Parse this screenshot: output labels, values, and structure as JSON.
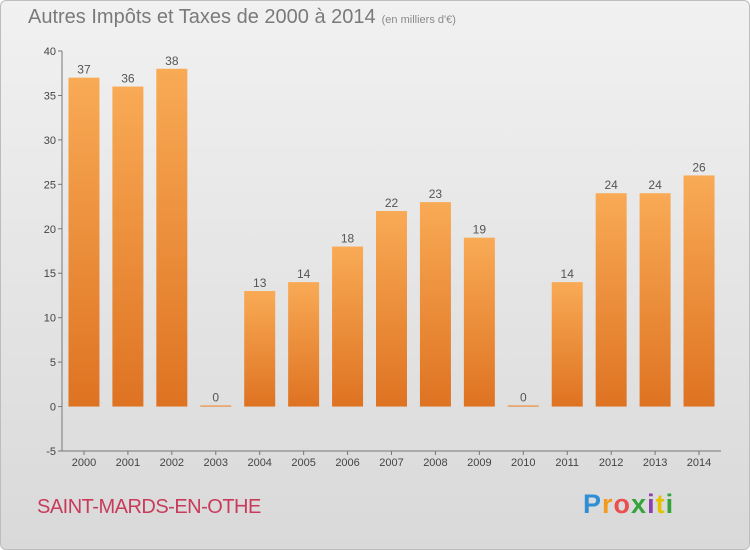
{
  "title": "Autres Impôts et Taxes de 2000 à 2014",
  "unit_note": "(en milliers d'€)",
  "commune": "SAINT-MARDS-EN-OTHE",
  "logo": {
    "letters": [
      "P",
      "r",
      "o",
      "x",
      "i",
      "t",
      "i"
    ],
    "colors": [
      "#2e8fd6",
      "#f39a1e",
      "#e84f4f",
      "#33a33a",
      "#8c3fb0",
      "#e5c100",
      "#33a33a"
    ]
  },
  "chart_data": {
    "type": "bar",
    "categories": [
      "2000",
      "2001",
      "2002",
      "2003",
      "2004",
      "2005",
      "2006",
      "2007",
      "2008",
      "2009",
      "2010",
      "2011",
      "2012",
      "2013",
      "2014"
    ],
    "values": [
      37,
      36,
      38,
      0,
      13,
      14,
      18,
      22,
      23,
      19,
      0,
      14,
      24,
      24,
      26
    ],
    "title": "Autres Impôts et Taxes de 2000 à 2014",
    "ylim": [
      -5,
      40
    ],
    "yticks": [
      -5,
      0,
      5,
      10,
      15,
      20,
      25,
      30,
      35,
      40
    ],
    "grid": false,
    "bar_color": "#f5a14a"
  }
}
